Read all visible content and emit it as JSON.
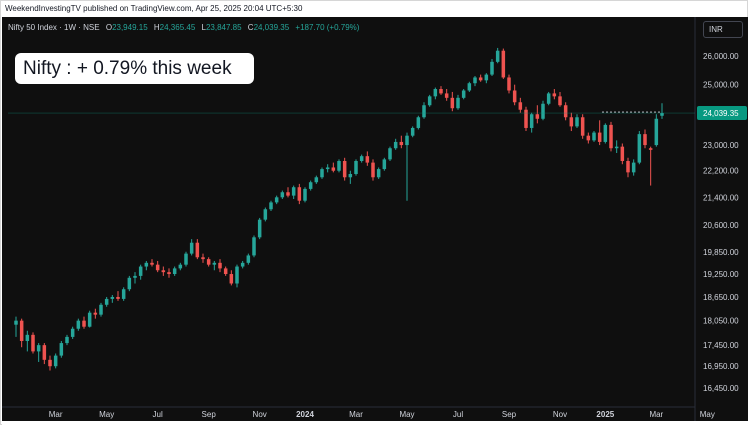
{
  "publisher_line": "WeekendInvestingTV published on TradingView.com, Apr 25, 2025 20:04 UTC+5:30",
  "header": {
    "symbol": "Nifty 50 Index · 1W · NSE",
    "open_label": "O",
    "open": "23,949.15",
    "high_label": "H",
    "high": "24,365.45",
    "low_label": "L",
    "low": "23,847.85",
    "close_label": "C",
    "close": "24,039.35",
    "change": "+187.70 (+0.79%)"
  },
  "currency": "INR",
  "callout_text": "Nifty : + 0.79% this week",
  "colors": {
    "up": "#26a69a",
    "down": "#ef5350",
    "background": "#0f0f0f",
    "text": "#d1d4dc",
    "last_price_badge": "#089981"
  },
  "chart_data": {
    "type": "candlestick",
    "title": "Nifty 50 Index · 1W · NSE",
    "timeframe": "1W",
    "y_axis": {
      "scale": "log",
      "range": [
        16200,
        26700
      ],
      "tick_labels": [
        "26,000.00",
        "25,000.00",
        "24,000.00",
        "23,000.00",
        "22,200.00",
        "21,400.00",
        "20,600.00",
        "19,850.00",
        "19,250.00",
        "18,650.00",
        "18,050.00",
        "17,450.00",
        "16,950.00",
        "16,450.00"
      ],
      "ticks": [
        26000,
        25000,
        24000,
        23000,
        22200,
        21400,
        20600,
        19850,
        19250,
        18650,
        18050,
        17450,
        16950,
        16450
      ]
    },
    "x_axis": {
      "labels": [
        "Mar",
        "May",
        "Jul",
        "Sep",
        "Nov",
        "2024",
        "Mar",
        "May",
        "Jul",
        "Sep",
        "Nov",
        "2025",
        "Mar",
        "May"
      ],
      "label_week_index": [
        7,
        16,
        25,
        34,
        43,
        51,
        60,
        69,
        78,
        87,
        96,
        104,
        113,
        122
      ]
    },
    "last_price": {
      "value": 24039.35,
      "label": "24,039.35"
    },
    "candles": [
      {
        "o": 17950,
        "h": 18150,
        "l": 17650,
        "c": 18050
      },
      {
        "o": 18050,
        "h": 18100,
        "l": 17400,
        "c": 17550
      },
      {
        "o": 17550,
        "h": 17800,
        "l": 17300,
        "c": 17700
      },
      {
        "o": 17700,
        "h": 17760,
        "l": 17250,
        "c": 17300
      },
      {
        "o": 17300,
        "h": 17500,
        "l": 17050,
        "c": 17450
      },
      {
        "o": 17450,
        "h": 17500,
        "l": 17000,
        "c": 17100
      },
      {
        "o": 17100,
        "h": 17200,
        "l": 16850,
        "c": 16950
      },
      {
        "o": 16950,
        "h": 17250,
        "l": 16900,
        "c": 17200
      },
      {
        "o": 17200,
        "h": 17550,
        "l": 17150,
        "c": 17500
      },
      {
        "o": 17500,
        "h": 17700,
        "l": 17450,
        "c": 17650
      },
      {
        "o": 17650,
        "h": 17900,
        "l": 17600,
        "c": 17850
      },
      {
        "o": 17850,
        "h": 18100,
        "l": 17800,
        "c": 18050
      },
      {
        "o": 18050,
        "h": 18150,
        "l": 17850,
        "c": 17900
      },
      {
        "o": 17900,
        "h": 18300,
        "l": 17880,
        "c": 18250
      },
      {
        "o": 18250,
        "h": 18350,
        "l": 18100,
        "c": 18200
      },
      {
        "o": 18200,
        "h": 18500,
        "l": 18150,
        "c": 18450
      },
      {
        "o": 18450,
        "h": 18650,
        "l": 18400,
        "c": 18600
      },
      {
        "o": 18600,
        "h": 18700,
        "l": 18500,
        "c": 18650
      },
      {
        "o": 18650,
        "h": 18800,
        "l": 18550,
        "c": 18600
      },
      {
        "o": 18600,
        "h": 18900,
        "l": 18550,
        "c": 18850
      },
      {
        "o": 18850,
        "h": 19200,
        "l": 18800,
        "c": 19150
      },
      {
        "o": 19150,
        "h": 19300,
        "l": 19000,
        "c": 19200
      },
      {
        "o": 19200,
        "h": 19500,
        "l": 19100,
        "c": 19450
      },
      {
        "o": 19450,
        "h": 19600,
        "l": 19350,
        "c": 19550
      },
      {
        "o": 19550,
        "h": 19650,
        "l": 19450,
        "c": 19500
      },
      {
        "o": 19500,
        "h": 19600,
        "l": 19300,
        "c": 19350
      },
      {
        "o": 19350,
        "h": 19450,
        "l": 19200,
        "c": 19300
      },
      {
        "o": 19300,
        "h": 19400,
        "l": 19150,
        "c": 19250
      },
      {
        "o": 19250,
        "h": 19450,
        "l": 19200,
        "c": 19400
      },
      {
        "o": 19400,
        "h": 19550,
        "l": 19350,
        "c": 19500
      },
      {
        "o": 19500,
        "h": 19850,
        "l": 19450,
        "c": 19800
      },
      {
        "o": 19800,
        "h": 20200,
        "l": 19750,
        "c": 20100
      },
      {
        "o": 20100,
        "h": 20200,
        "l": 19650,
        "c": 19700
      },
      {
        "o": 19700,
        "h": 19800,
        "l": 19550,
        "c": 19650
      },
      {
        "o": 19650,
        "h": 19700,
        "l": 19450,
        "c": 19500
      },
      {
        "o": 19500,
        "h": 19600,
        "l": 19350,
        "c": 19550
      },
      {
        "o": 19550,
        "h": 19650,
        "l": 19300,
        "c": 19400
      },
      {
        "o": 19400,
        "h": 19450,
        "l": 19200,
        "c": 19250
      },
      {
        "o": 19250,
        "h": 19350,
        "l": 18950,
        "c": 19000
      },
      {
        "o": 19000,
        "h": 19500,
        "l": 18900,
        "c": 19450
      },
      {
        "o": 19450,
        "h": 19600,
        "l": 19400,
        "c": 19550
      },
      {
        "o": 19550,
        "h": 19800,
        "l": 19500,
        "c": 19750
      },
      {
        "o": 19750,
        "h": 20300,
        "l": 19700,
        "c": 20250
      },
      {
        "o": 20250,
        "h": 20800,
        "l": 20200,
        "c": 20750
      },
      {
        "o": 20750,
        "h": 21100,
        "l": 20700,
        "c": 21050
      },
      {
        "o": 21050,
        "h": 21300,
        "l": 21000,
        "c": 21250
      },
      {
        "o": 21250,
        "h": 21450,
        "l": 21200,
        "c": 21400
      },
      {
        "o": 21400,
        "h": 21600,
        "l": 21350,
        "c": 21550
      },
      {
        "o": 21550,
        "h": 21700,
        "l": 21400,
        "c": 21450
      },
      {
        "o": 21450,
        "h": 21750,
        "l": 21350,
        "c": 21700
      },
      {
        "o": 21700,
        "h": 21800,
        "l": 21200,
        "c": 21300
      },
      {
        "o": 21300,
        "h": 21700,
        "l": 21250,
        "c": 21650
      },
      {
        "o": 21650,
        "h": 21900,
        "l": 21600,
        "c": 21850
      },
      {
        "o": 21850,
        "h": 22050,
        "l": 21800,
        "c": 22000
      },
      {
        "o": 22000,
        "h": 22300,
        "l": 21950,
        "c": 22250
      },
      {
        "o": 22250,
        "h": 22400,
        "l": 22150,
        "c": 22300
      },
      {
        "o": 22300,
        "h": 22450,
        "l": 22150,
        "c": 22200
      },
      {
        "o": 22200,
        "h": 22550,
        "l": 22150,
        "c": 22500
      },
      {
        "o": 22500,
        "h": 22600,
        "l": 21900,
        "c": 22000
      },
      {
        "o": 22000,
        "h": 22200,
        "l": 21800,
        "c": 22100
      },
      {
        "o": 22100,
        "h": 22550,
        "l": 22050,
        "c": 22500
      },
      {
        "o": 22500,
        "h": 22700,
        "l": 22450,
        "c": 22650
      },
      {
        "o": 22650,
        "h": 22800,
        "l": 22350,
        "c": 22450
      },
      {
        "o": 22450,
        "h": 22550,
        "l": 21900,
        "c": 22000
      },
      {
        "o": 22000,
        "h": 22300,
        "l": 21950,
        "c": 22250
      },
      {
        "o": 22250,
        "h": 22600,
        "l": 22200,
        "c": 22550
      },
      {
        "o": 22550,
        "h": 22950,
        "l": 22500,
        "c": 22900
      },
      {
        "o": 22900,
        "h": 23200,
        "l": 22850,
        "c": 23100
      },
      {
        "o": 23100,
        "h": 23300,
        "l": 22900,
        "c": 23000
      },
      {
        "o": 23000,
        "h": 23400,
        "l": 21300,
        "c": 23300
      },
      {
        "o": 23300,
        "h": 23600,
        "l": 23250,
        "c": 23550
      },
      {
        "o": 23550,
        "h": 23950,
        "l": 23500,
        "c": 23900
      },
      {
        "o": 23900,
        "h": 24400,
        "l": 23850,
        "c": 24300
      },
      {
        "o": 24300,
        "h": 24650,
        "l": 24250,
        "c": 24600
      },
      {
        "o": 24600,
        "h": 24900,
        "l": 24500,
        "c": 24850
      },
      {
        "o": 24850,
        "h": 24950,
        "l": 24650,
        "c": 24700
      },
      {
        "o": 24700,
        "h": 24850,
        "l": 24450,
        "c": 24550
      },
      {
        "o": 24550,
        "h": 24750,
        "l": 24100,
        "c": 24200
      },
      {
        "o": 24200,
        "h": 24650,
        "l": 24150,
        "c": 24550
      },
      {
        "o": 24550,
        "h": 24850,
        "l": 24500,
        "c": 24800
      },
      {
        "o": 24800,
        "h": 25100,
        "l": 24750,
        "c": 25050
      },
      {
        "o": 25050,
        "h": 25300,
        "l": 24950,
        "c": 25250
      },
      {
        "o": 25250,
        "h": 25350,
        "l": 25100,
        "c": 25150
      },
      {
        "o": 25150,
        "h": 25400,
        "l": 25050,
        "c": 25350
      },
      {
        "o": 25350,
        "h": 25900,
        "l": 25300,
        "c": 25800
      },
      {
        "o": 25800,
        "h": 26300,
        "l": 25750,
        "c": 26200
      },
      {
        "o": 26200,
        "h": 26277,
        "l": 25200,
        "c": 25250
      },
      {
        "o": 25250,
        "h": 25350,
        "l": 24700,
        "c": 24800
      },
      {
        "o": 24800,
        "h": 25000,
        "l": 24300,
        "c": 24400
      },
      {
        "o": 24400,
        "h": 24550,
        "l": 24050,
        "c": 24150
      },
      {
        "o": 24150,
        "h": 24250,
        "l": 23450,
        "c": 23550
      },
      {
        "o": 23550,
        "h": 24050,
        "l": 23400,
        "c": 24000
      },
      {
        "o": 24000,
        "h": 24300,
        "l": 23700,
        "c": 23850
      },
      {
        "o": 23850,
        "h": 24450,
        "l": 23800,
        "c": 24350
      },
      {
        "o": 24350,
        "h": 24750,
        "l": 24300,
        "c": 24700
      },
      {
        "o": 24700,
        "h": 24850,
        "l": 24500,
        "c": 24600
      },
      {
        "o": 24600,
        "h": 24750,
        "l": 24250,
        "c": 24300
      },
      {
        "o": 24300,
        "h": 24400,
        "l": 23800,
        "c": 23900
      },
      {
        "o": 23900,
        "h": 24050,
        "l": 23450,
        "c": 23600
      },
      {
        "o": 23600,
        "h": 24000,
        "l": 23550,
        "c": 23900
      },
      {
        "o": 23900,
        "h": 24000,
        "l": 23200,
        "c": 23300
      },
      {
        "o": 23300,
        "h": 23400,
        "l": 23050,
        "c": 23150
      },
      {
        "o": 23150,
        "h": 23450,
        "l": 23100,
        "c": 23400
      },
      {
        "o": 23400,
        "h": 23800,
        "l": 23000,
        "c": 23100
      },
      {
        "o": 23100,
        "h": 23700,
        "l": 23050,
        "c": 23650
      },
      {
        "o": 23650,
        "h": 23750,
        "l": 22800,
        "c": 22900
      },
      {
        "o": 22900,
        "h": 23150,
        "l": 22750,
        "c": 22950
      },
      {
        "o": 22950,
        "h": 23050,
        "l": 22400,
        "c": 22500
      },
      {
        "o": 22500,
        "h": 22600,
        "l": 22000,
        "c": 22150
      },
      {
        "o": 22150,
        "h": 22550,
        "l": 22050,
        "c": 22450
      },
      {
        "o": 22450,
        "h": 23450,
        "l": 22400,
        "c": 23350
      },
      {
        "o": 23350,
        "h": 23500,
        "l": 22900,
        "c": 23000
      },
      {
        "o": 22900,
        "h": 22950,
        "l": 21750,
        "c": 22850
      },
      {
        "o": 23000,
        "h": 24000,
        "l": 22950,
        "c": 23851
      },
      {
        "o": 23949.15,
        "h": 24365.45,
        "l": 23847.85,
        "c": 24039.35
      }
    ]
  }
}
